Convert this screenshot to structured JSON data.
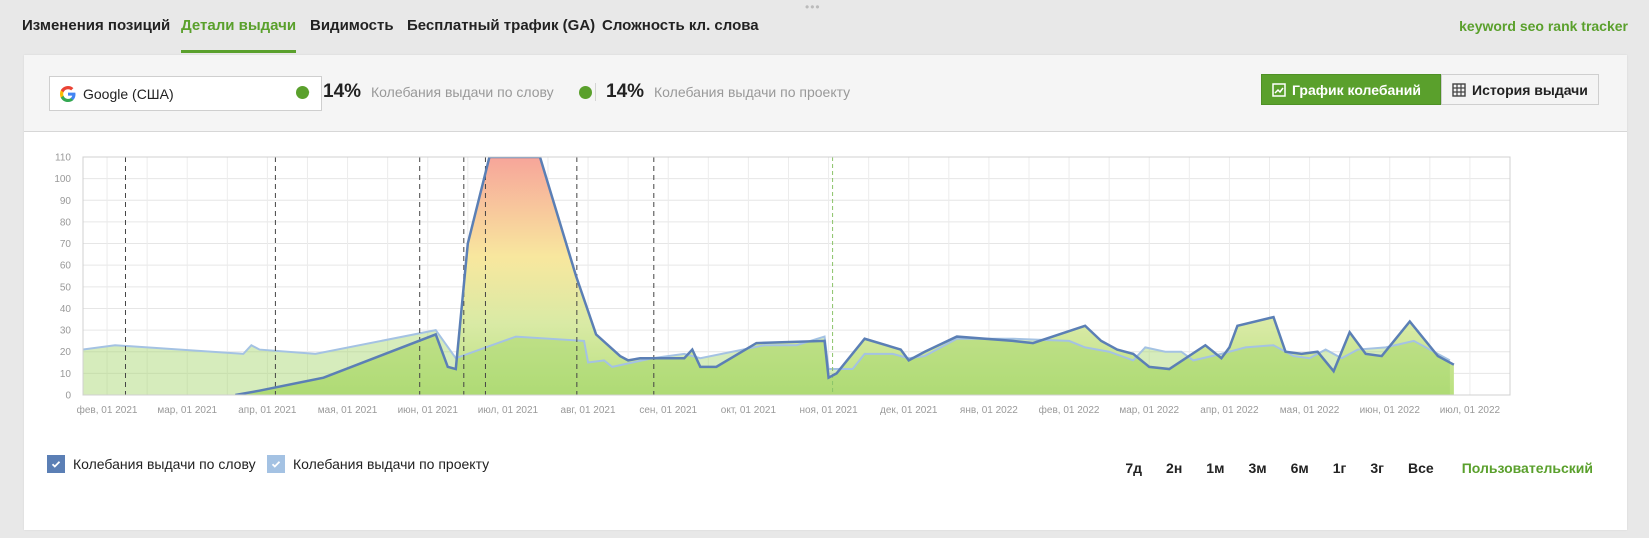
{
  "nav": {
    "tabs": [
      {
        "label": "Изменения позиций",
        "active": false
      },
      {
        "label": "Детали выдачи",
        "active": true
      },
      {
        "label": "Видимость",
        "active": false
      },
      {
        "label": "Бесплатный трафик (GA)",
        "active": false
      },
      {
        "label": "Сложность кл. слова",
        "active": false
      }
    ],
    "brand": "keyword seo rank tracker"
  },
  "toolbar": {
    "engine": {
      "value": "Google (США)",
      "icon": "google-icon"
    },
    "metric_keyword": {
      "value": "14%",
      "label": "Колебания выдачи по слову",
      "color": "#5aa02c"
    },
    "metric_project": {
      "value": "14%",
      "label": "Колебания выдачи по проекту",
      "color": "#5aa02c"
    },
    "btn_chart": {
      "label": "График колебаний",
      "icon": "chart-icon"
    },
    "btn_history": {
      "label": "История выдачи",
      "icon": "grid-icon"
    }
  },
  "chart_data": {
    "type": "area",
    "title": "",
    "xlabel": "",
    "ylabel": "",
    "ylim": [
      0,
      110
    ],
    "yticks": [
      0,
      10,
      20,
      30,
      40,
      50,
      60,
      70,
      80,
      90,
      100,
      110
    ],
    "x_tick_labels": [
      "фев, 01 2021",
      "мар, 01 2021",
      "апр, 01 2021",
      "мая, 01 2021",
      "июн, 01 2021",
      "июл, 01 2021",
      "авг, 01 2021",
      "сен, 01 2021",
      "окт, 01 2021",
      "ноя, 01 2021",
      "дек, 01 2021",
      "янв, 01 2022",
      "фев, 01 2022",
      "мар, 01 2022",
      "апр, 01 2022",
      "мая, 01 2022",
      "июн, 01 2022",
      "июл, 01 2022"
    ],
    "xlim": [
      -0.3,
      17.5
    ],
    "grid": true,
    "event_markers": [
      0.23,
      2.1,
      3.9,
      4.45,
      4.72,
      5.86,
      6.82
    ],
    "today_marker": 9.05,
    "series": [
      {
        "name": "Колебания выдачи по слову",
        "color": "#5b7fb5",
        "points": [
          [
            1.6,
            0
          ],
          [
            1.9,
            2
          ],
          [
            2.7,
            8
          ],
          [
            4.1,
            28
          ],
          [
            4.25,
            13
          ],
          [
            4.35,
            12
          ],
          [
            4.5,
            70
          ],
          [
            4.77,
            110
          ],
          [
            5.4,
            110
          ],
          [
            5.85,
            55
          ],
          [
            6.1,
            28
          ],
          [
            6.4,
            18
          ],
          [
            6.5,
            16
          ],
          [
            6.65,
            17
          ],
          [
            7.2,
            17
          ],
          [
            7.3,
            21
          ],
          [
            7.4,
            13
          ],
          [
            7.6,
            13
          ],
          [
            8.1,
            24
          ],
          [
            8.95,
            25
          ],
          [
            9.0,
            8
          ],
          [
            9.1,
            10
          ],
          [
            9.45,
            26
          ],
          [
            9.9,
            21
          ],
          [
            10.0,
            16
          ],
          [
            10.2,
            20
          ],
          [
            10.6,
            27
          ],
          [
            11.3,
            25
          ],
          [
            11.55,
            24
          ],
          [
            12.2,
            32
          ],
          [
            12.4,
            25
          ],
          [
            12.6,
            21
          ],
          [
            12.8,
            19
          ],
          [
            13.0,
            13
          ],
          [
            13.25,
            12
          ],
          [
            13.7,
            23
          ],
          [
            13.9,
            17
          ],
          [
            14.0,
            22
          ],
          [
            14.1,
            32
          ],
          [
            14.55,
            36
          ],
          [
            14.7,
            20
          ],
          [
            14.9,
            19
          ],
          [
            15.1,
            20
          ],
          [
            15.3,
            11
          ],
          [
            15.5,
            29
          ],
          [
            15.7,
            19
          ],
          [
            15.9,
            18
          ],
          [
            16.25,
            34
          ],
          [
            16.6,
            18
          ],
          [
            16.8,
            14
          ]
        ]
      },
      {
        "name": "Колебания выдачи по проекту",
        "color": "#a4c2e3",
        "points": [
          [
            -0.3,
            21
          ],
          [
            0.1,
            23
          ],
          [
            1.7,
            19
          ],
          [
            1.8,
            23
          ],
          [
            1.9,
            21
          ],
          [
            2.6,
            19
          ],
          [
            4.1,
            30
          ],
          [
            4.35,
            17
          ],
          [
            5.1,
            27
          ],
          [
            5.95,
            25
          ],
          [
            6.0,
            15
          ],
          [
            6.2,
            16
          ],
          [
            6.3,
            13
          ],
          [
            6.8,
            17
          ],
          [
            7.2,
            19
          ],
          [
            7.4,
            17
          ],
          [
            8.2,
            23
          ],
          [
            8.6,
            23
          ],
          [
            8.95,
            27
          ],
          [
            9.0,
            12
          ],
          [
            9.3,
            12
          ],
          [
            9.45,
            19
          ],
          [
            9.8,
            19
          ],
          [
            10.0,
            17
          ],
          [
            10.2,
            18
          ],
          [
            10.6,
            26
          ],
          [
            11.3,
            26
          ],
          [
            12.0,
            25
          ],
          [
            12.2,
            22
          ],
          [
            12.5,
            20
          ],
          [
            12.8,
            16
          ],
          [
            12.95,
            22
          ],
          [
            13.2,
            20
          ],
          [
            13.4,
            20
          ],
          [
            13.55,
            16
          ],
          [
            13.9,
            19
          ],
          [
            14.2,
            22
          ],
          [
            14.55,
            23
          ],
          [
            14.8,
            18
          ],
          [
            15.0,
            17
          ],
          [
            15.2,
            21
          ],
          [
            15.4,
            17
          ],
          [
            15.6,
            21
          ],
          [
            15.95,
            22
          ],
          [
            16.3,
            25
          ],
          [
            16.6,
            19
          ],
          [
            16.75,
            16
          ]
        ]
      }
    ]
  },
  "legend": {
    "keyword": {
      "label": "Колебания выдачи по слову",
      "color": "#5b7fb5"
    },
    "project": {
      "label": "Колебания выдачи по проекту",
      "color": "#a4c2e3"
    }
  },
  "ranges": [
    "7д",
    "2н",
    "1м",
    "3м",
    "6м",
    "1г",
    "3г",
    "Все"
  ],
  "range_custom": "Пользовательский"
}
